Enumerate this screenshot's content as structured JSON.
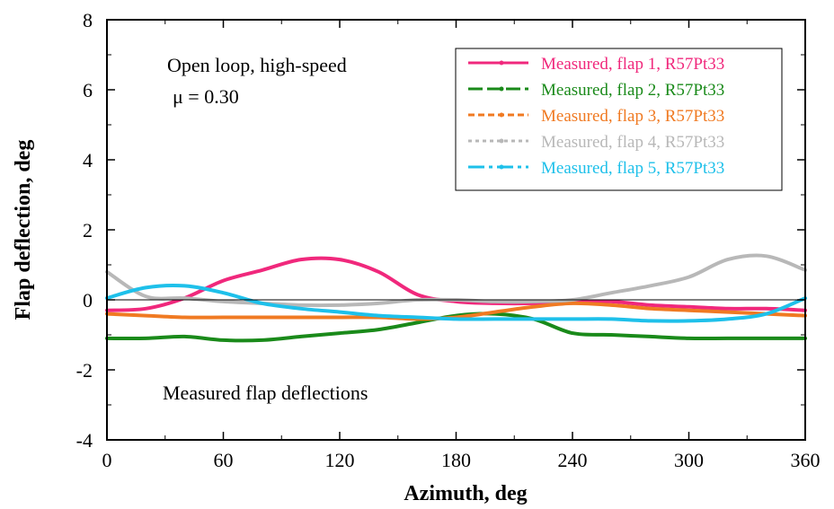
{
  "chart_data": {
    "type": "line",
    "xlabel": "Azimuth, deg",
    "ylabel": "Flap deflection, deg",
    "xlim": [
      0,
      360
    ],
    "ylim": [
      -4,
      8
    ],
    "xticks": [
      0,
      60,
      120,
      180,
      240,
      300,
      360
    ],
    "yticks": [
      -4,
      -2,
      0,
      2,
      4,
      6,
      8
    ],
    "zero_line": true,
    "grid": false,
    "legend_position": "top-right",
    "annotations": {
      "condition": "Open loop, high-speed",
      "mu": "μ = 0.30",
      "note": "Measured flap deflections"
    },
    "series": [
      {
        "name": "Measured, flap 1, R57Pt33",
        "color": "#f0287c",
        "x": [
          0,
          20,
          40,
          60,
          80,
          100,
          120,
          140,
          160,
          180,
          200,
          220,
          240,
          260,
          280,
          300,
          320,
          340,
          360
        ],
        "y": [
          -0.3,
          -0.25,
          0.05,
          0.55,
          0.85,
          1.15,
          1.15,
          0.8,
          0.15,
          -0.05,
          -0.1,
          -0.1,
          -0.05,
          -0.05,
          -0.15,
          -0.2,
          -0.25,
          -0.25,
          -0.3
        ]
      },
      {
        "name": "Measured, flap 2, R57Pt33",
        "color": "#1a8a1a",
        "x": [
          0,
          20,
          40,
          60,
          80,
          100,
          120,
          140,
          160,
          180,
          200,
          220,
          240,
          260,
          280,
          300,
          320,
          340,
          360
        ],
        "y": [
          -1.1,
          -1.1,
          -1.05,
          -1.15,
          -1.15,
          -1.05,
          -0.95,
          -0.85,
          -0.65,
          -0.45,
          -0.4,
          -0.55,
          -0.95,
          -1.0,
          -1.05,
          -1.1,
          -1.1,
          -1.1,
          -1.1
        ]
      },
      {
        "name": "Measured, flap 3, R57Pt33",
        "color": "#f07a22",
        "x": [
          0,
          20,
          40,
          60,
          80,
          100,
          120,
          140,
          160,
          180,
          200,
          220,
          240,
          260,
          280,
          300,
          320,
          340,
          360
        ],
        "y": [
          -0.4,
          -0.45,
          -0.5,
          -0.5,
          -0.5,
          -0.5,
          -0.5,
          -0.5,
          -0.55,
          -0.5,
          -0.35,
          -0.2,
          -0.1,
          -0.15,
          -0.25,
          -0.3,
          -0.35,
          -0.4,
          -0.45
        ]
      },
      {
        "name": "Measured, flap 4, R57Pt33",
        "color": "#b8b8b8",
        "x": [
          0,
          20,
          40,
          60,
          80,
          100,
          120,
          140,
          160,
          180,
          200,
          220,
          240,
          260,
          280,
          300,
          320,
          340,
          360
        ],
        "y": [
          0.8,
          0.1,
          0.05,
          -0.05,
          -0.1,
          -0.15,
          -0.15,
          -0.1,
          0.0,
          0.0,
          -0.05,
          -0.05,
          0.0,
          0.2,
          0.4,
          0.65,
          1.15,
          1.25,
          0.85
        ]
      },
      {
        "name": "Measured, flap 5, R57Pt33",
        "color": "#1ec0ea",
        "x": [
          0,
          20,
          40,
          60,
          80,
          100,
          120,
          140,
          160,
          180,
          200,
          220,
          240,
          260,
          280,
          300,
          320,
          340,
          360
        ],
        "y": [
          0.05,
          0.35,
          0.4,
          0.2,
          -0.1,
          -0.25,
          -0.35,
          -0.45,
          -0.5,
          -0.55,
          -0.55,
          -0.55,
          -0.55,
          -0.55,
          -0.6,
          -0.6,
          -0.55,
          -0.4,
          0.05
        ]
      }
    ]
  }
}
